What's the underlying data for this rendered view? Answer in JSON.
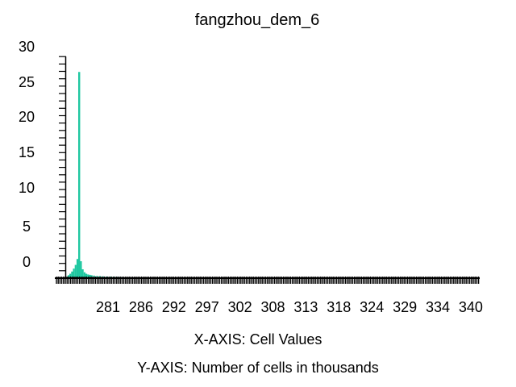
{
  "chart_data": {
    "type": "bar",
    "title": "fangzhou_dem_6",
    "xlabel": "X-AXIS: Cell Values",
    "ylabel": "Y-AXIS: Number of cells in thousands",
    "x_range": [
      275.6,
      345.2
    ],
    "y_range": [
      0,
      30
    ],
    "ytick_labels": [
      "30",
      "25",
      "20",
      "15",
      "10",
      "5",
      "0"
    ],
    "xtick_labels": [
      "281",
      "286",
      "292",
      "297",
      "302",
      "308",
      "313",
      "318",
      "324",
      "329",
      "334",
      "340"
    ],
    "grid": false,
    "legend": "none",
    "bar_color": "#1ec8a0",
    "bins": [
      {
        "x": 276.0,
        "y": 0.4
      },
      {
        "x": 276.3,
        "y": 0.6
      },
      {
        "x": 276.6,
        "y": 0.9
      },
      {
        "x": 276.9,
        "y": 1.3
      },
      {
        "x": 277.2,
        "y": 1.8
      },
      {
        "x": 277.5,
        "y": 2.6
      },
      {
        "x": 277.8,
        "y": 28.0
      },
      {
        "x": 278.1,
        "y": 2.3
      },
      {
        "x": 278.4,
        "y": 1.2
      },
      {
        "x": 278.7,
        "y": 0.8
      },
      {
        "x": 279.0,
        "y": 0.6
      },
      {
        "x": 279.3,
        "y": 0.5
      },
      {
        "x": 279.6,
        "y": 0.45
      },
      {
        "x": 279.9,
        "y": 0.4
      },
      {
        "x": 280.3,
        "y": 0.35
      },
      {
        "x": 280.8,
        "y": 0.3
      },
      {
        "x": 281.3,
        "y": 0.28
      },
      {
        "x": 281.8,
        "y": 0.25
      },
      {
        "x": 282.4,
        "y": 0.22
      },
      {
        "x": 283.0,
        "y": 0.2
      },
      {
        "x": 283.6,
        "y": 0.18
      },
      {
        "x": 284.3,
        "y": 0.15
      },
      {
        "x": 285.0,
        "y": 0.13
      },
      {
        "x": 286.0,
        "y": 0.11
      },
      {
        "x": 287.5,
        "y": 0.09
      },
      {
        "x": 289.0,
        "y": 0.08
      },
      {
        "x": 291.0,
        "y": 0.07
      },
      {
        "x": 294.0,
        "y": 0.06
      },
      {
        "x": 297.0,
        "y": 0.05
      },
      {
        "x": 300.0,
        "y": 0.05
      },
      {
        "x": 305.0,
        "y": 0.04
      },
      {
        "x": 310.0,
        "y": 0.04
      },
      {
        "x": 315.0,
        "y": 0.03
      },
      {
        "x": 320.0,
        "y": 0.03
      },
      {
        "x": 325.0,
        "y": 0.03
      },
      {
        "x": 330.0,
        "y": 0.02
      },
      {
        "x": 335.0,
        "y": 0.02
      },
      {
        "x": 340.0,
        "y": 0.02
      },
      {
        "x": 344.0,
        "y": 0.02
      }
    ]
  }
}
